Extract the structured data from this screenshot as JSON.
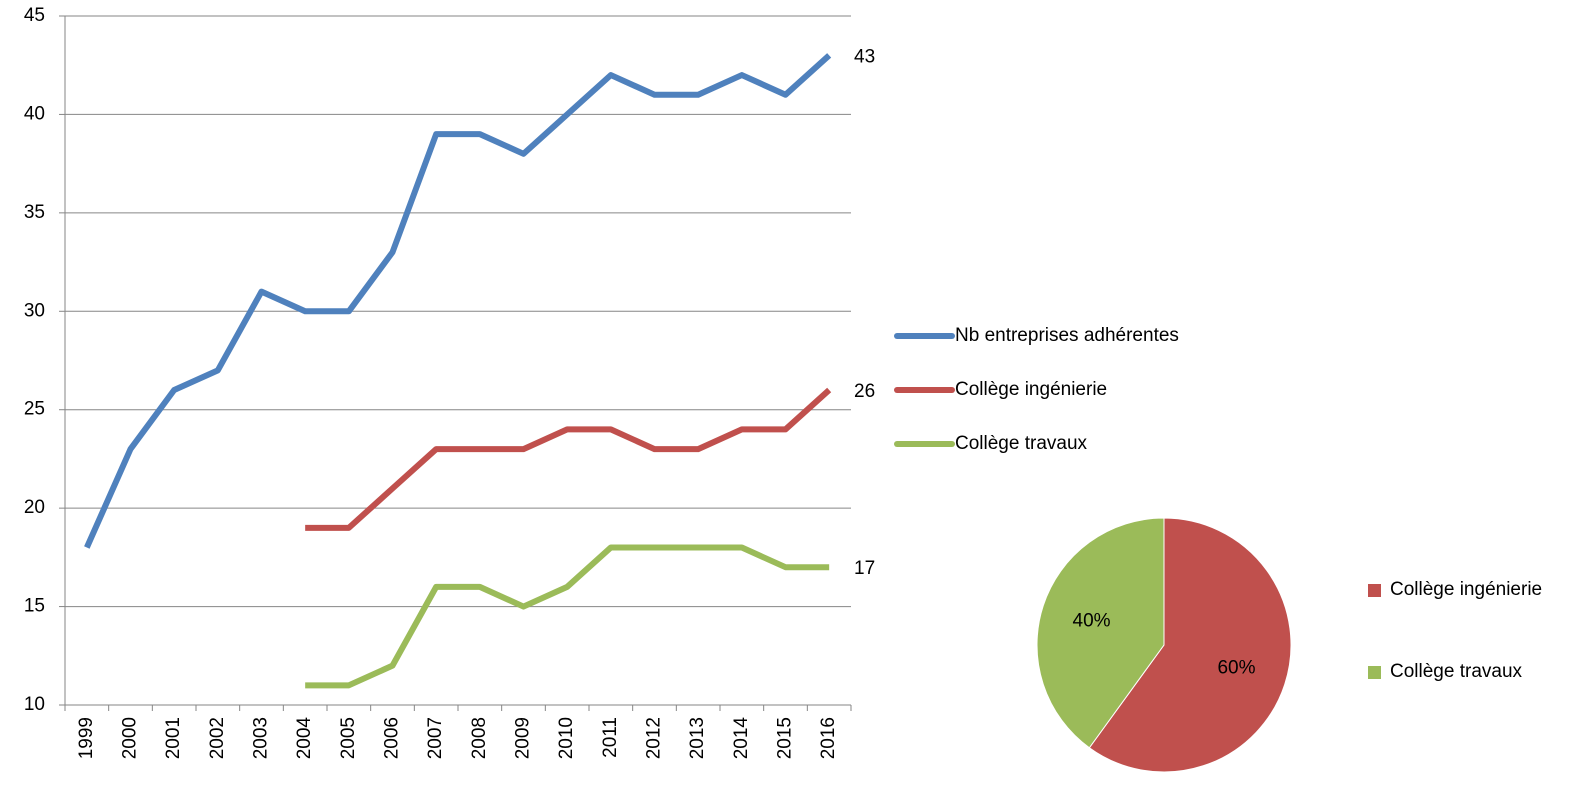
{
  "chart_data": [
    {
      "type": "line",
      "categories": [
        "1999",
        "2000",
        "2001",
        "2002",
        "2003",
        "2004",
        "2005",
        "2006",
        "2007",
        "2008",
        "2009",
        "2010",
        "2011",
        "2012",
        "2013",
        "2014",
        "2015",
        "2016"
      ],
      "series": [
        {
          "name": "Nb entreprises adhérentes",
          "color": "#4f81bd",
          "values": [
            18,
            23,
            26,
            27,
            31,
            30,
            30,
            33,
            39,
            39,
            38,
            40,
            42,
            41,
            41,
            42,
            41,
            43
          ]
        },
        {
          "name": "Collège ingénierie",
          "color": "#c0504d",
          "values": [
            null,
            null,
            null,
            null,
            null,
            19,
            19,
            21,
            23,
            23,
            23,
            24,
            24,
            23,
            23,
            24,
            24,
            26
          ]
        },
        {
          "name": "Collège travaux",
          "color": "#9bbb59",
          "values": [
            null,
            null,
            null,
            null,
            null,
            11,
            11,
            12,
            16,
            16,
            15,
            16,
            18,
            18,
            18,
            18,
            17,
            17
          ]
        }
      ],
      "ylim": [
        10,
        45
      ],
      "yticks": [
        10,
        15,
        20,
        25,
        30,
        35,
        40,
        45
      ],
      "grid": true,
      "legend": "right"
    },
    {
      "type": "pie",
      "categories": [
        "Collège ingénierie",
        "Collège travaux"
      ],
      "values": [
        60,
        40
      ],
      "value_labels": [
        "60%",
        "40%"
      ],
      "colors": [
        "#c0504d",
        "#9bbb59"
      ],
      "legend": "right"
    }
  ]
}
